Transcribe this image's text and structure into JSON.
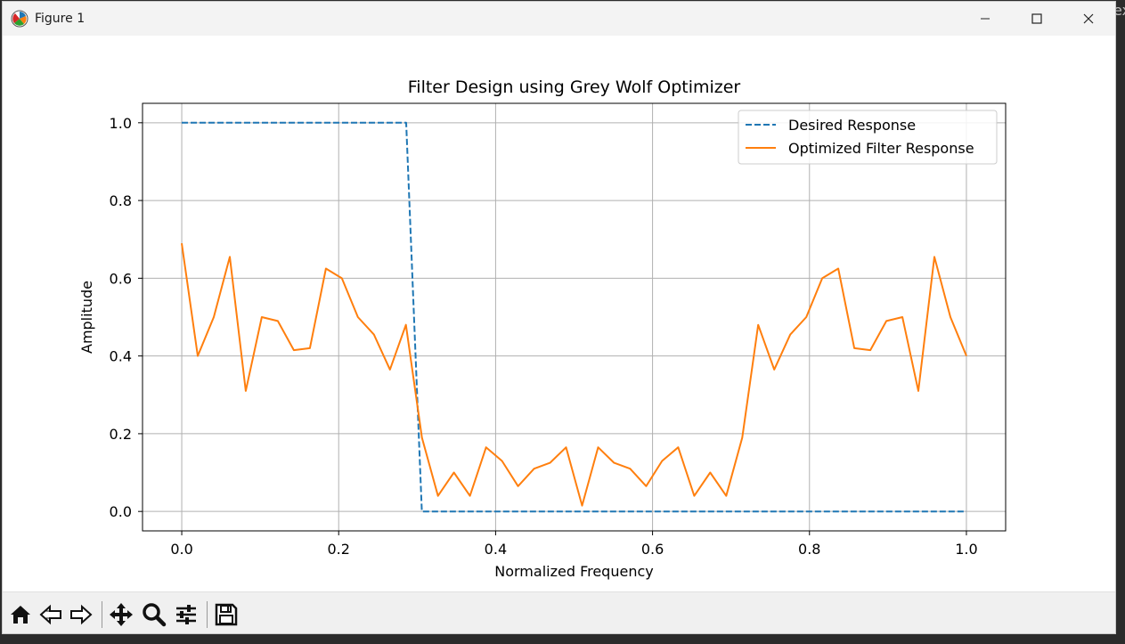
{
  "window": {
    "title": "Figure 1",
    "icons": [
      "matplotlib-icon",
      "minimize-icon",
      "maximize-icon",
      "close-icon"
    ]
  },
  "toolbar": {
    "tools": [
      {
        "name": "home-icon"
      },
      {
        "name": "back-icon"
      },
      {
        "name": "forward-icon"
      },
      {
        "name": "pan-icon"
      },
      {
        "name": "zoom-icon"
      },
      {
        "name": "configure-subplots-icon"
      },
      {
        "name": "save-icon"
      }
    ]
  },
  "chart_data": {
    "type": "line",
    "title": "Filter Design using Grey Wolf Optimizer",
    "xlabel": "Normalized Frequency",
    "ylabel": "Amplitude",
    "xlim": [
      -0.05,
      1.05
    ],
    "ylim": [
      -0.05,
      1.05
    ],
    "xticks": [
      0.0,
      0.2,
      0.4,
      0.6,
      0.8,
      1.0
    ],
    "xtick_labels": [
      "0.0",
      "0.2",
      "0.4",
      "0.6",
      "0.8",
      "1.0"
    ],
    "yticks": [
      0.0,
      0.2,
      0.4,
      0.6,
      0.8,
      1.0
    ],
    "ytick_labels": [
      "0.0",
      "0.2",
      "0.4",
      "0.6",
      "0.8",
      "1.0"
    ],
    "grid": true,
    "legend": "top-right",
    "series": [
      {
        "name": "Desired Response",
        "color": "#1f77b4",
        "style": "dashed",
        "x": [
          0.0,
          0.286,
          0.306,
          1.0
        ],
        "y": [
          1.0,
          1.0,
          0.0,
          0.0
        ]
      },
      {
        "name": "Optimized Filter Response",
        "color": "#ff7f0e",
        "style": "solid",
        "x": [
          0.0,
          0.0204,
          0.0408,
          0.0612,
          0.0816,
          0.102,
          0.1224,
          0.1429,
          0.1633,
          0.1837,
          0.2041,
          0.2245,
          0.2449,
          0.2653,
          0.2857,
          0.3061,
          0.3265,
          0.3469,
          0.3673,
          0.3878,
          0.4082,
          0.4286,
          0.449,
          0.4694,
          0.4898,
          0.5102,
          0.5306,
          0.551,
          0.5714,
          0.5918,
          0.6122,
          0.6327,
          0.6531,
          0.6735,
          0.6939,
          0.7143,
          0.7347,
          0.7551,
          0.7755,
          0.7959,
          0.8163,
          0.8367,
          0.8571,
          0.8776,
          0.898,
          0.9184,
          0.9388,
          0.9592,
          0.9796,
          1.0
        ],
        "y": [
          0.69,
          0.4,
          0.5,
          0.655,
          0.31,
          0.5,
          0.49,
          0.415,
          0.42,
          0.625,
          0.6,
          0.5,
          0.455,
          0.365,
          0.48,
          0.19,
          0.04,
          0.1,
          0.04,
          0.165,
          0.13,
          0.065,
          0.11,
          0.125,
          0.165,
          0.015,
          0.165,
          0.125,
          0.11,
          0.065,
          0.13,
          0.165,
          0.04,
          0.1,
          0.04,
          0.19,
          0.48,
          0.365,
          0.455,
          0.5,
          0.6,
          0.625,
          0.42,
          0.415,
          0.49,
          0.5,
          0.31,
          0.655,
          0.5,
          0.4
        ]
      }
    ]
  }
}
